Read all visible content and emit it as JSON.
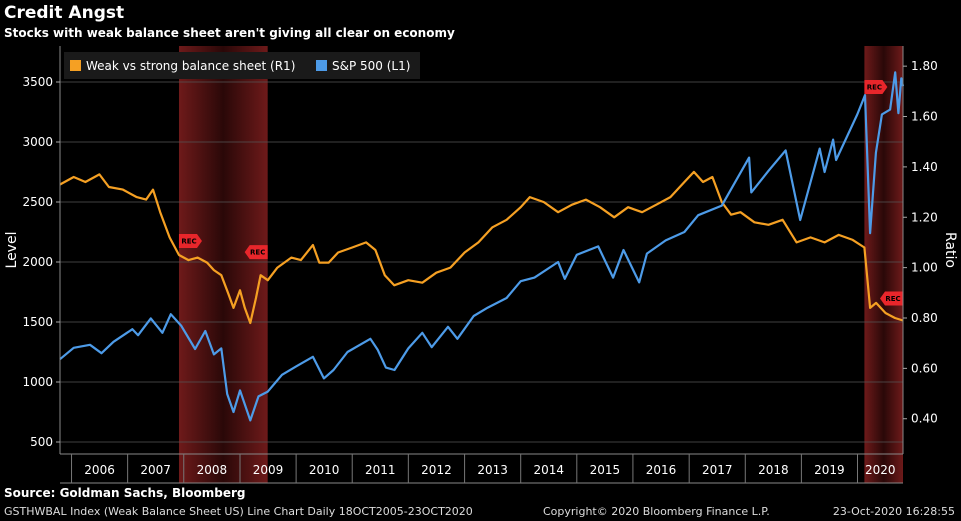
{
  "header": {
    "title": "Credit Angst",
    "subtitle": "Stocks with weak balance sheet aren't giving all clear on economy"
  },
  "footer": {
    "source": "Source: Goldman Sachs, Bloomberg",
    "left": "GSTHWBAL Index (Weak Balance Sheet US) Line Chart  Daily 18OCT2005-23OCT2020",
    "copyright": "Copyright© 2020 Bloomberg Finance L.P.",
    "timestamp": "23-Oct-2020 16:28:55"
  },
  "colors": {
    "background": "#000000",
    "weak_vs_strong": "#f5a023",
    "sp500": "#4d9be8",
    "recession_band": "#6e1a1a",
    "rec_marker": "#e8262b"
  },
  "chart_data": {
    "type": "line",
    "title": "Credit Angst",
    "subtitle": "Stocks with weak balance sheet aren't giving all clear on economy",
    "ylabel_left": "Level",
    "ylabel_right": "Ratio",
    "x_ticks": [
      "2006",
      "2007",
      "2008",
      "2009",
      "2010",
      "2011",
      "2012",
      "2013",
      "2014",
      "2015",
      "2016",
      "2017",
      "2018",
      "2019",
      "2020"
    ],
    "xlim": [
      "2005-10-18",
      "2020-10-23"
    ],
    "ylim_left": [
      400,
      3800
    ],
    "yticks_left": [
      500,
      1000,
      1500,
      2000,
      2500,
      3000,
      3500
    ],
    "ylim_right": [
      0.26,
      1.88
    ],
    "yticks_right": [
      0.4,
      0.6,
      0.8,
      1.0,
      1.2,
      1.4,
      1.6,
      1.8
    ],
    "grid": true,
    "legend_position": "top-left",
    "recession_periods": [
      {
        "start": "2007-12-01",
        "end": "2009-06-30",
        "start_label": "REC",
        "end_label": "REC"
      },
      {
        "start": "2020-02-15",
        "end": "2020-10-23",
        "start_label": "REC",
        "end_label": "REC"
      }
    ],
    "series": [
      {
        "name": "Weak vs strong balance sheet (R1)",
        "axis": "right",
        "points": [
          [
            "2005-10-18",
            1.33
          ],
          [
            "2006-01-15",
            1.36
          ],
          [
            "2006-04-01",
            1.34
          ],
          [
            "2006-07-01",
            1.37
          ],
          [
            "2006-09-01",
            1.32
          ],
          [
            "2006-12-01",
            1.31
          ],
          [
            "2007-03-01",
            1.28
          ],
          [
            "2007-05-01",
            1.27
          ],
          [
            "2007-06-15",
            1.31
          ],
          [
            "2007-08-01",
            1.22
          ],
          [
            "2007-10-01",
            1.12
          ],
          [
            "2007-12-01",
            1.05
          ],
          [
            "2008-02-01",
            1.03
          ],
          [
            "2008-04-01",
            1.04
          ],
          [
            "2008-06-01",
            1.02
          ],
          [
            "2008-07-15",
            0.99
          ],
          [
            "2008-09-01",
            0.97
          ],
          [
            "2008-10-15",
            0.9
          ],
          [
            "2008-11-20",
            0.84
          ],
          [
            "2009-01-01",
            0.91
          ],
          [
            "2009-02-01",
            0.84
          ],
          [
            "2009-03-09",
            0.78
          ],
          [
            "2009-04-15",
            0.88
          ],
          [
            "2009-05-15",
            0.97
          ],
          [
            "2009-07-01",
            0.95
          ],
          [
            "2009-09-01",
            1.0
          ],
          [
            "2009-12-01",
            1.04
          ],
          [
            "2010-02-01",
            1.03
          ],
          [
            "2010-04-20",
            1.09
          ],
          [
            "2010-06-01",
            1.02
          ],
          [
            "2010-08-01",
            1.02
          ],
          [
            "2010-10-01",
            1.06
          ],
          [
            "2011-01-01",
            1.08
          ],
          [
            "2011-04-01",
            1.1
          ],
          [
            "2011-06-01",
            1.07
          ],
          [
            "2011-08-01",
            0.97
          ],
          [
            "2011-10-01",
            0.93
          ],
          [
            "2012-01-01",
            0.95
          ],
          [
            "2012-04-01",
            0.94
          ],
          [
            "2012-07-01",
            0.98
          ],
          [
            "2012-10-01",
            1.0
          ],
          [
            "2013-01-01",
            1.06
          ],
          [
            "2013-04-01",
            1.1
          ],
          [
            "2013-07-01",
            1.16
          ],
          [
            "2013-10-01",
            1.19
          ],
          [
            "2014-01-01",
            1.24
          ],
          [
            "2014-03-01",
            1.28
          ],
          [
            "2014-06-01",
            1.26
          ],
          [
            "2014-09-01",
            1.22
          ],
          [
            "2014-12-01",
            1.25
          ],
          [
            "2015-03-01",
            1.27
          ],
          [
            "2015-06-01",
            1.24
          ],
          [
            "2015-09-01",
            1.2
          ],
          [
            "2015-12-01",
            1.24
          ],
          [
            "2016-03-01",
            1.22
          ],
          [
            "2016-06-01",
            1.25
          ],
          [
            "2016-09-01",
            1.28
          ],
          [
            "2016-12-01",
            1.34
          ],
          [
            "2017-02-01",
            1.38
          ],
          [
            "2017-04-01",
            1.34
          ],
          [
            "2017-06-01",
            1.36
          ],
          [
            "2017-08-01",
            1.26
          ],
          [
            "2017-10-01",
            1.21
          ],
          [
            "2017-12-01",
            1.22
          ],
          [
            "2018-03-01",
            1.18
          ],
          [
            "2018-06-01",
            1.17
          ],
          [
            "2018-09-01",
            1.19
          ],
          [
            "2018-12-01",
            1.1
          ],
          [
            "2019-03-01",
            1.12
          ],
          [
            "2019-06-01",
            1.1
          ],
          [
            "2019-09-01",
            1.13
          ],
          [
            "2019-12-01",
            1.11
          ],
          [
            "2020-02-15",
            1.08
          ],
          [
            "2020-03-23",
            0.84
          ],
          [
            "2020-05-01",
            0.86
          ],
          [
            "2020-07-01",
            0.82
          ],
          [
            "2020-09-01",
            0.8
          ],
          [
            "2020-10-23",
            0.79
          ]
        ]
      },
      {
        "name": "S&P 500 (L1)",
        "axis": "left",
        "points": [
          [
            "2005-10-18",
            1190
          ],
          [
            "2006-01-15",
            1285
          ],
          [
            "2006-05-01",
            1310
          ],
          [
            "2006-07-15",
            1240
          ],
          [
            "2006-10-01",
            1335
          ],
          [
            "2007-02-01",
            1440
          ],
          [
            "2007-03-10",
            1390
          ],
          [
            "2007-06-01",
            1530
          ],
          [
            "2007-08-15",
            1410
          ],
          [
            "2007-10-09",
            1565
          ],
          [
            "2007-12-15",
            1470
          ],
          [
            "2008-03-15",
            1275
          ],
          [
            "2008-05-20",
            1425
          ],
          [
            "2008-07-15",
            1230
          ],
          [
            "2008-09-01",
            1280
          ],
          [
            "2008-10-10",
            900
          ],
          [
            "2008-11-20",
            750
          ],
          [
            "2009-01-01",
            930
          ],
          [
            "2009-03-09",
            680
          ],
          [
            "2009-05-01",
            880
          ],
          [
            "2009-07-01",
            920
          ],
          [
            "2009-10-01",
            1060
          ],
          [
            "2010-01-01",
            1130
          ],
          [
            "2010-04-20",
            1210
          ],
          [
            "2010-07-01",
            1030
          ],
          [
            "2010-09-01",
            1100
          ],
          [
            "2010-12-01",
            1250
          ],
          [
            "2011-04-29",
            1360
          ],
          [
            "2011-06-15",
            1270
          ],
          [
            "2011-08-08",
            1120
          ],
          [
            "2011-10-03",
            1100
          ],
          [
            "2012-01-01",
            1280
          ],
          [
            "2012-04-01",
            1410
          ],
          [
            "2012-06-01",
            1290
          ],
          [
            "2012-09-15",
            1460
          ],
          [
            "2012-11-15",
            1360
          ],
          [
            "2013-03-01",
            1550
          ],
          [
            "2013-06-01",
            1620
          ],
          [
            "2013-10-01",
            1700
          ],
          [
            "2014-01-01",
            1840
          ],
          [
            "2014-04-01",
            1870
          ],
          [
            "2014-09-01",
            2000
          ],
          [
            "2014-10-15",
            1860
          ],
          [
            "2015-01-01",
            2060
          ],
          [
            "2015-05-20",
            2130
          ],
          [
            "2015-08-25",
            1870
          ],
          [
            "2015-11-01",
            2100
          ],
          [
            "2016-02-11",
            1830
          ],
          [
            "2016-04-01",
            2070
          ],
          [
            "2016-08-01",
            2180
          ],
          [
            "2016-12-01",
            2250
          ],
          [
            "2017-03-01",
            2390
          ],
          [
            "2017-08-01",
            2470
          ],
          [
            "2018-01-26",
            2870
          ],
          [
            "2018-02-09",
            2580
          ],
          [
            "2018-06-01",
            2760
          ],
          [
            "2018-09-20",
            2930
          ],
          [
            "2018-12-24",
            2350
          ],
          [
            "2019-04-30",
            2945
          ],
          [
            "2019-06-01",
            2750
          ],
          [
            "2019-07-26",
            3020
          ],
          [
            "2019-08-15",
            2850
          ],
          [
            "2019-12-31",
            3230
          ],
          [
            "2020-02-19",
            3390
          ],
          [
            "2020-03-23",
            2240
          ],
          [
            "2020-04-30",
            2910
          ],
          [
            "2020-06-08",
            3230
          ],
          [
            "2020-07-31",
            3270
          ],
          [
            "2020-09-02",
            3580
          ],
          [
            "2020-09-23",
            3240
          ],
          [
            "2020-10-12",
            3530
          ],
          [
            "2020-10-23",
            3465
          ]
        ]
      }
    ]
  }
}
